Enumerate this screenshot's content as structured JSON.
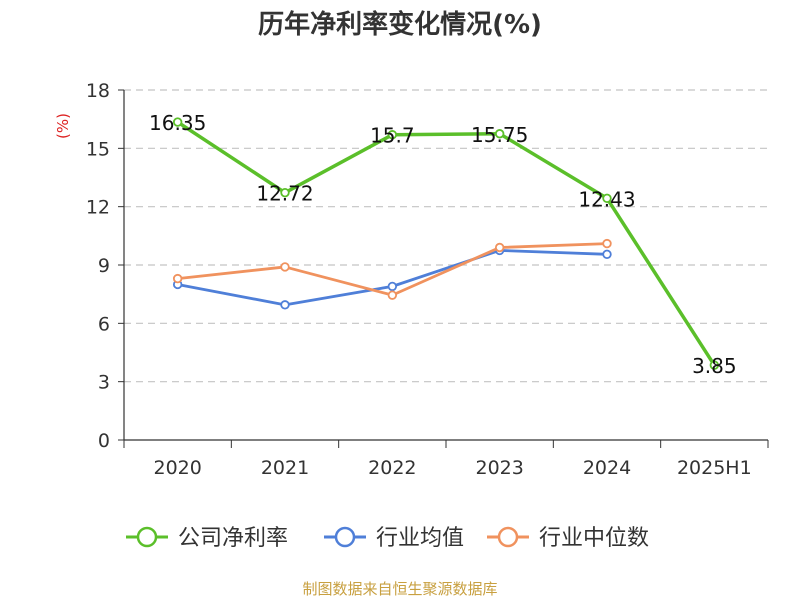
{
  "title": "历年净利率变化情况(%)",
  "source": "制图数据来自恒生聚源数据库",
  "chart_data": {
    "type": "line",
    "title": "历年净利率变化情况(%)",
    "ylabel": "(%)",
    "ylim": [
      0,
      18
    ],
    "yticks": [
      0,
      3,
      6,
      9,
      12,
      15,
      18
    ],
    "categories": [
      "2020",
      "2021",
      "2022",
      "2023",
      "2024",
      "2025H1"
    ],
    "grid": true,
    "legend_position": "bottom",
    "series": [
      {
        "name": "公司净利率",
        "color": "#5bbf2a",
        "values": [
          16.35,
          12.72,
          15.7,
          15.75,
          12.43,
          3.85
        ],
        "labels": [
          "16.35",
          "12.72",
          "15.7",
          "15.75",
          "12.43",
          "3.85"
        ]
      },
      {
        "name": "行业均值",
        "color": "#4f7fd8",
        "values": [
          8.0,
          6.95,
          7.9,
          9.75,
          9.55,
          null
        ]
      },
      {
        "name": "行业中位数",
        "color": "#f0925e",
        "values": [
          8.3,
          8.9,
          7.45,
          9.9,
          10.1,
          null
        ]
      }
    ]
  }
}
